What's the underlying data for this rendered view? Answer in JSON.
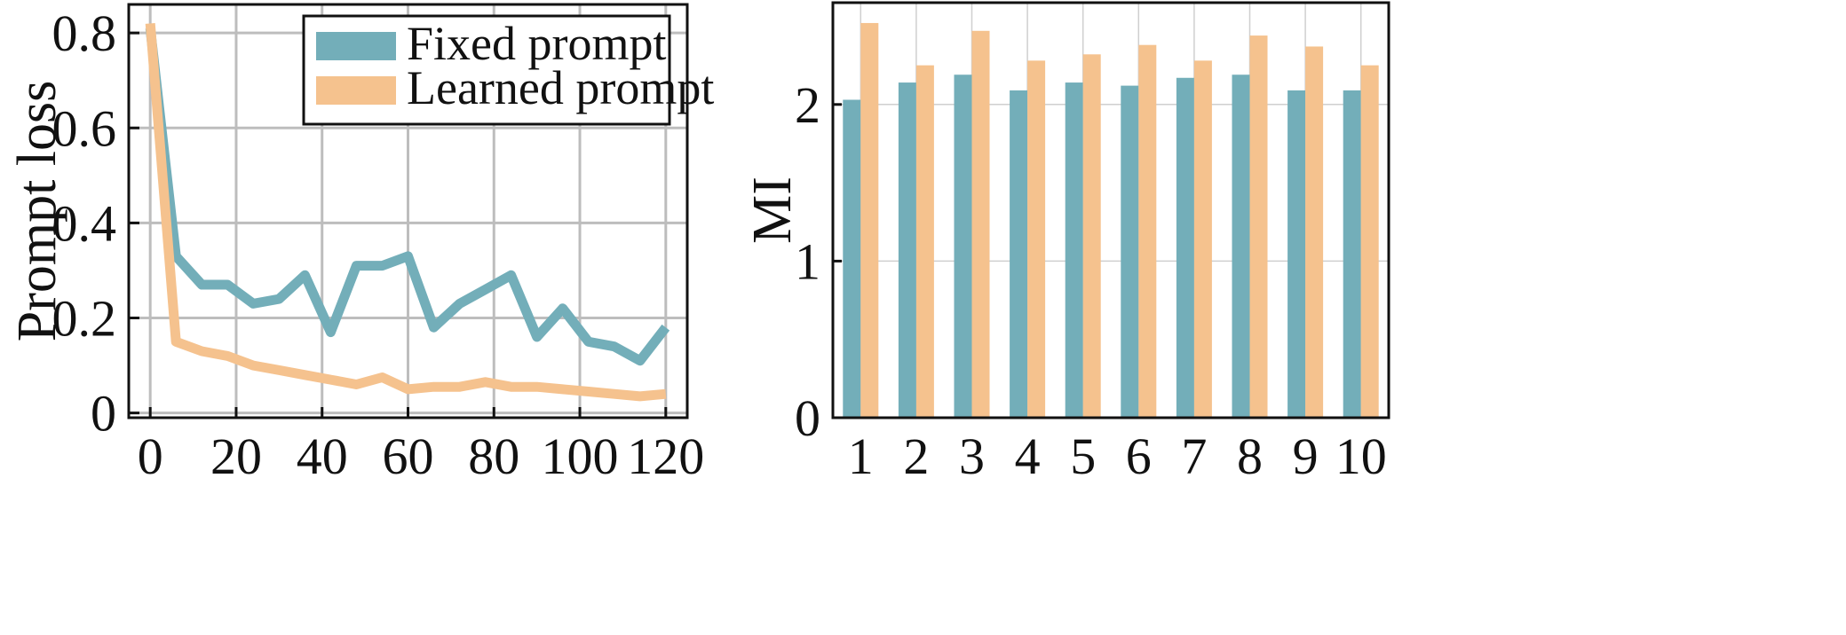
{
  "chart_data": [
    {
      "type": "line",
      "ylabel": "Prompt loss",
      "xlabel": "",
      "xlim": [
        -5,
        125
      ],
      "ylim": [
        -0.01,
        0.86
      ],
      "x_ticks": [
        0,
        20,
        40,
        60,
        80,
        100,
        120
      ],
      "x_tick_labels": [
        "0",
        "20",
        "40",
        "60",
        "80",
        "100",
        "120"
      ],
      "y_ticks": [
        0,
        0.2,
        0.4,
        0.6,
        0.8
      ],
      "y_tick_labels": [
        "0",
        "0.2",
        "0.4",
        "0.6",
        "0.8"
      ],
      "grid": true,
      "legend_position": "top-right",
      "series": [
        {
          "name": "Fixed prompt",
          "color": "#73aeb9",
          "x": [
            0,
            6,
            12,
            18,
            24,
            30,
            36,
            42,
            48,
            54,
            60,
            66,
            72,
            78,
            84,
            90,
            96,
            102,
            108,
            114,
            120
          ],
          "y": [
            0.81,
            0.33,
            0.27,
            0.27,
            0.23,
            0.24,
            0.29,
            0.17,
            0.31,
            0.31,
            0.33,
            0.18,
            0.23,
            0.26,
            0.29,
            0.16,
            0.22,
            0.15,
            0.14,
            0.11,
            0.18
          ]
        },
        {
          "name": "Learned prompt",
          "color": "#f5c28e",
          "x": [
            0,
            6,
            12,
            18,
            24,
            30,
            36,
            42,
            48,
            54,
            60,
            66,
            72,
            78,
            84,
            90,
            96,
            102,
            108,
            114,
            120
          ],
          "y": [
            0.82,
            0.15,
            0.13,
            0.12,
            0.1,
            0.09,
            0.08,
            0.07,
            0.06,
            0.075,
            0.05,
            0.055,
            0.055,
            0.065,
            0.055,
            0.055,
            0.05,
            0.045,
            0.04,
            0.035,
            0.04
          ]
        }
      ]
    },
    {
      "type": "bar",
      "ylabel": "MI",
      "xlabel": "",
      "ylim": [
        0,
        2.65
      ],
      "categories": [
        "1",
        "2",
        "3",
        "4",
        "5",
        "6",
        "7",
        "8",
        "9",
        "10"
      ],
      "y_ticks": [
        0,
        1,
        2
      ],
      "y_tick_labels": [
        "0",
        "1",
        "2"
      ],
      "grid": true,
      "series": [
        {
          "color": "#73aeb9",
          "values": [
            2.03,
            2.14,
            2.19,
            2.09,
            2.14,
            2.12,
            2.17,
            2.19,
            2.09,
            2.09
          ]
        },
        {
          "color": "#f5c28e",
          "values": [
            2.52,
            2.25,
            2.47,
            2.28,
            2.32,
            2.38,
            2.28,
            2.44,
            2.37,
            2.25
          ]
        }
      ]
    }
  ]
}
